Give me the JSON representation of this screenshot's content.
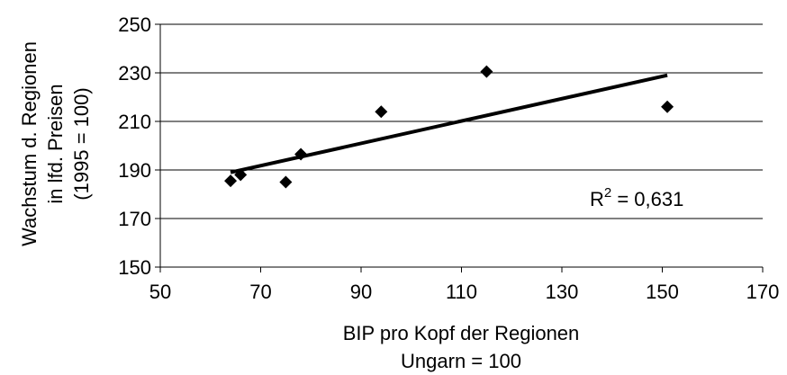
{
  "chart_data": {
    "type": "scatter",
    "title": "",
    "xlabel_lines": [
      "BIP pro Kopf der Regionen",
      "Ungarn = 100"
    ],
    "ylabel_lines": [
      "Wachstum d. Regionen",
      "in lfd. Preisen",
      "(1995 = 100)"
    ],
    "xlim": [
      50,
      170
    ],
    "ylim": [
      150,
      250
    ],
    "xticks": [
      50,
      70,
      90,
      110,
      130,
      150,
      170
    ],
    "yticks": [
      150,
      170,
      190,
      210,
      230,
      250
    ],
    "grid": "horizontal",
    "points": [
      {
        "x": 64,
        "y": 185.5
      },
      {
        "x": 66,
        "y": 188
      },
      {
        "x": 75,
        "y": 185
      },
      {
        "x": 78,
        "y": 196.5
      },
      {
        "x": 94,
        "y": 214
      },
      {
        "x": 115,
        "y": 230.5
      },
      {
        "x": 151,
        "y": 216
      }
    ],
    "trendline": {
      "x": [
        64,
        151
      ],
      "y": [
        189,
        229
      ]
    },
    "annotation": {
      "text_base": "R",
      "text_sup": "2",
      "text_rest": " = 0,631"
    },
    "marker_color": "#000000",
    "line_color": "#000000"
  }
}
